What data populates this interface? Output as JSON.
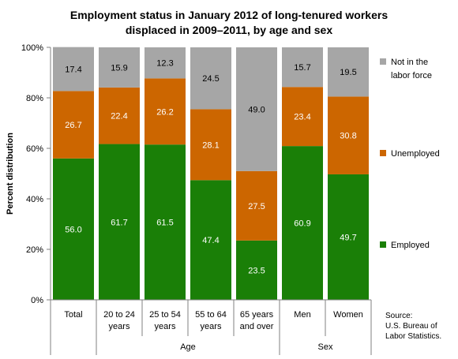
{
  "chart_data": {
    "type": "bar",
    "stacked": true,
    "title": [
      "Employment status in January 2012 of long-tenured workers",
      "displaced in 2009–2011, by age and sex"
    ],
    "ylabel": "Percent distribution",
    "ylim": [
      0,
      100
    ],
    "yticks": [
      "0%",
      "20%",
      "40%",
      "60%",
      "80%",
      "100%"
    ],
    "grid": false,
    "legend_position": "right",
    "categories": [
      [
        "Total"
      ],
      [
        "20 to 24",
        "years"
      ],
      [
        "25 to 54",
        "years"
      ],
      [
        "55 to 64",
        "years"
      ],
      [
        "65 years",
        "and over"
      ],
      [
        "Men"
      ],
      [
        "Women"
      ]
    ],
    "groups": [
      {
        "label": "Age",
        "start": 1,
        "end": 4
      },
      {
        "label": "Sex",
        "start": 5,
        "end": 6
      }
    ],
    "series": [
      {
        "name": "Employed",
        "color": "#1a7f07",
        "label_color": "#ffffff",
        "values": [
          56.0,
          61.7,
          61.5,
          47.4,
          23.5,
          60.9,
          49.7
        ],
        "labels": [
          "56.0",
          "61.7",
          "61.5",
          "47.4",
          "23.5",
          "60.9",
          "49.7"
        ]
      },
      {
        "name": "Unemployed",
        "color": "#cc6600",
        "label_color": "#ffffff",
        "values": [
          26.7,
          22.4,
          26.2,
          28.1,
          27.5,
          23.4,
          30.8
        ],
        "labels": [
          "26.7",
          "22.4",
          "26.2",
          "28.1",
          "27.5",
          "23.4",
          "30.8"
        ]
      },
      {
        "name": [
          "Not in the",
          "labor force"
        ],
        "color": "#a6a6a6",
        "label_color": "#000000",
        "values": [
          17.4,
          15.9,
          12.3,
          24.5,
          49.0,
          15.7,
          19.5
        ],
        "labels": [
          "17.4",
          "15.9",
          "12.3",
          "24.5",
          "49.0",
          "15.7",
          "19.5"
        ]
      }
    ],
    "source": [
      "Source:",
      "U.S. Bureau of",
      "Labor Statistics."
    ]
  }
}
